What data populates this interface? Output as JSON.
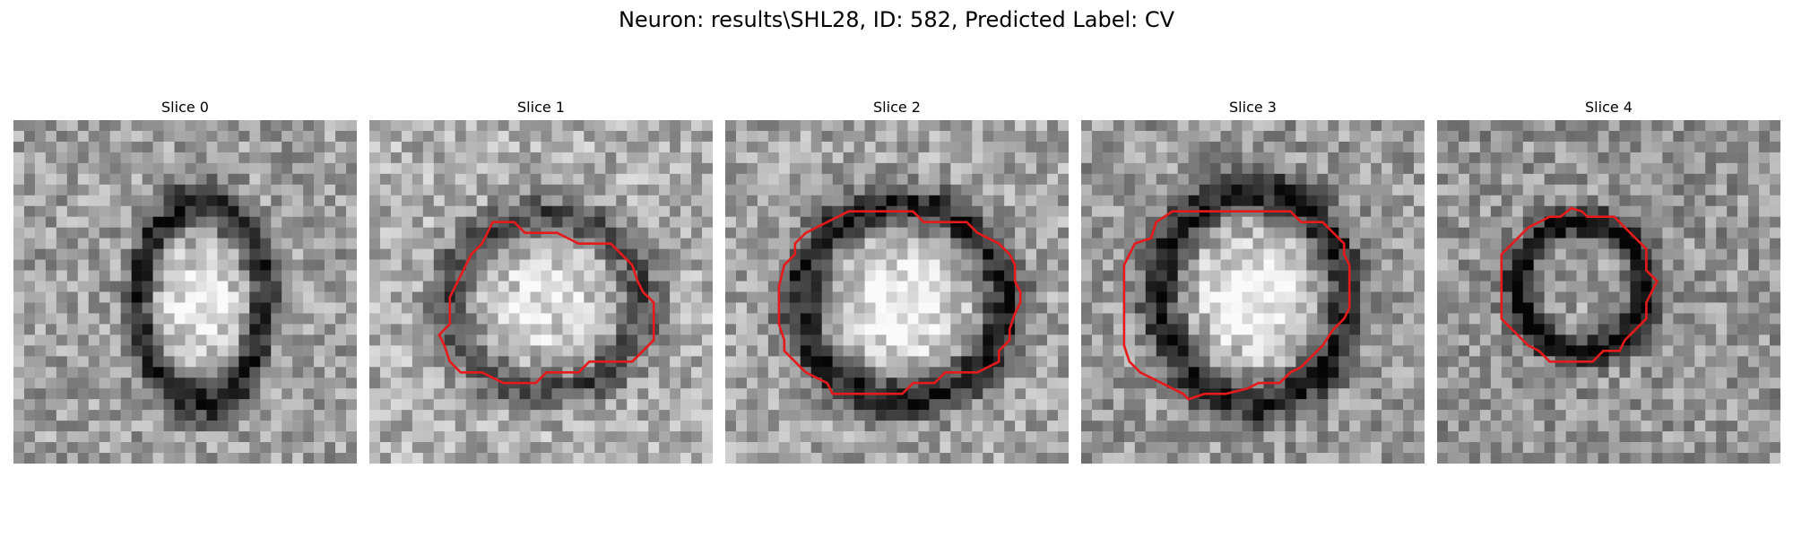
{
  "figure": {
    "title": "Neuron: results\\SHL28, ID: 582, Predicted Label: CV"
  },
  "panels": [
    {
      "title": "Slice 0",
      "has_contour": false,
      "contour_color": "#e41a1c"
    },
    {
      "title": "Slice 1",
      "has_contour": true,
      "contour_color": "#e41a1c"
    },
    {
      "title": "Slice 2",
      "has_contour": true,
      "contour_color": "#e41a1c"
    },
    {
      "title": "Slice 3",
      "has_contour": true,
      "contour_color": "#e41a1c"
    },
    {
      "title": "Slice 4",
      "has_contour": true,
      "contour_color": "#e41a1c"
    }
  ],
  "colormap": "gray"
}
